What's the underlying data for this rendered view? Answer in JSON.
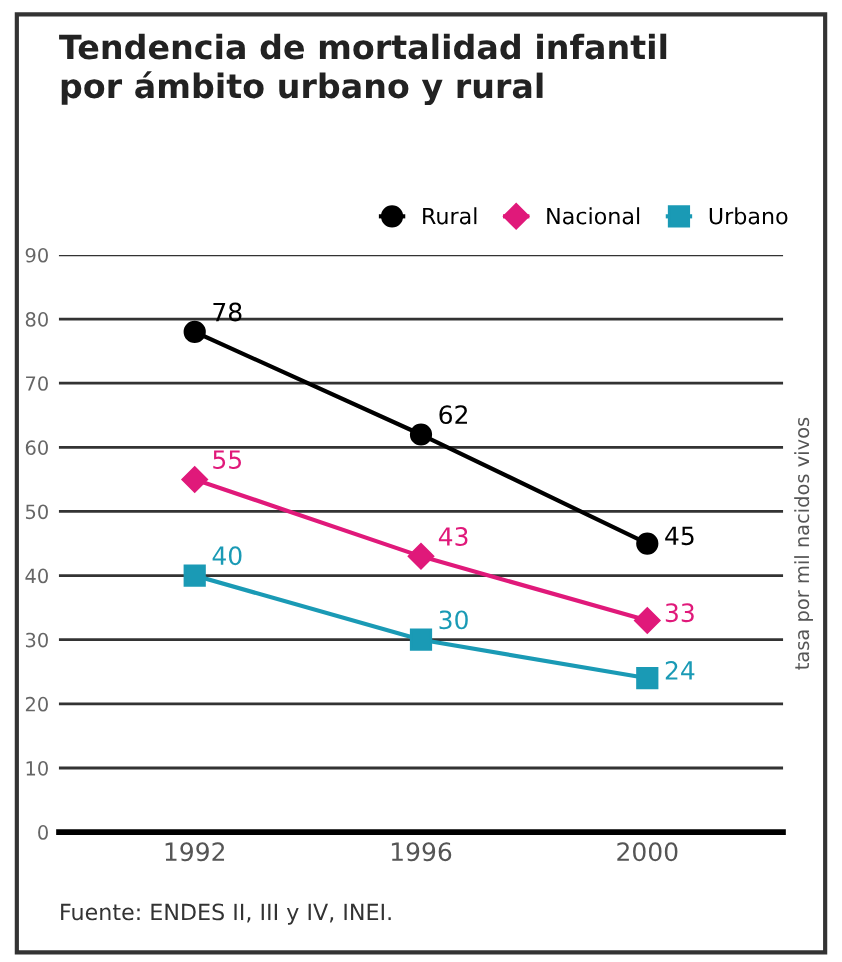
{
  "chart_data": {
    "type": "line",
    "title": "Tendencia de mortalidad infantil\npor ámbito urbano y rural",
    "ylabel": "tasa por mil nacidos vivos",
    "categories": [
      "1992",
      "1996",
      "2000"
    ],
    "series": [
      {
        "name": "Rural",
        "color": "#000000",
        "values": [
          78,
          62,
          45
        ],
        "marker": "circle"
      },
      {
        "name": "Nacional",
        "color": "#e0197a",
        "values": [
          55,
          43,
          33
        ],
        "marker": "diamond"
      },
      {
        "name": "Urbano",
        "color": "#1a9ab5",
        "values": [
          40,
          30,
          24
        ],
        "marker": "square"
      }
    ],
    "ylim": [
      0,
      90
    ],
    "yticks": [
      0,
      10,
      20,
      30,
      40,
      50,
      60,
      70,
      80,
      90
    ],
    "grid": "y",
    "legend": "top right",
    "data_labels": true,
    "annotations": [
      "Fuente: ENDES II, III y IV, INEI."
    ]
  }
}
